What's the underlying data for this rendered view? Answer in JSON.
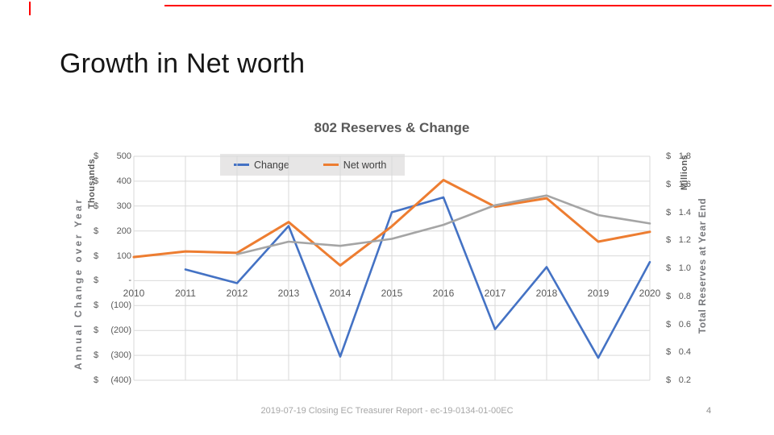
{
  "slide": {
    "title": "Growth in Net worth",
    "footer": "2019-07-19 Closing EC Treasurer Report - ec-19-0134-01-00EC",
    "page_number": "4",
    "accent_color": "#ff0000"
  },
  "chart_data": {
    "type": "line",
    "title": "802 Reserves & Change",
    "x": [
      2010,
      2011,
      2012,
      2013,
      2014,
      2015,
      2016,
      2017,
      2018,
      2019,
      2020
    ],
    "series": [
      {
        "name": "Change",
        "color": "#4472C4",
        "axis": "left",
        "in_legend": true,
        "stroke_width": 2.6,
        "values": [
          null,
          45,
          -10,
          220,
          -305,
          275,
          335,
          -195,
          55,
          -310,
          75
        ]
      },
      {
        "name": "Net worth",
        "color": "#ED7D31",
        "axis": "right",
        "in_legend": true,
        "stroke_width": 3,
        "values": [
          1.08,
          1.12,
          1.11,
          1.33,
          1.02,
          1.3,
          1.63,
          1.44,
          1.5,
          1.19,
          1.26
        ]
      },
      {
        "name": "",
        "color": "#A5A5A5",
        "axis": "right",
        "in_legend": false,
        "stroke_width": 2.6,
        "values": [
          null,
          null,
          1.1,
          1.19,
          1.16,
          1.21,
          1.31,
          1.45,
          1.52,
          1.38,
          1.32
        ]
      }
    ],
    "left_axis": {
      "title": "Annual Change over Year",
      "units_label": "Thousands",
      "min": -400,
      "max": 500,
      "ticks": [
        "$ 500",
        "$ 400",
        "$ 300",
        "$ 200",
        "$ 100",
        "$ -",
        "$ (100)",
        "$ (200)",
        "$ (300)",
        "$ (400)"
      ]
    },
    "right_axis": {
      "title": "Total Reserves at Year End",
      "units_label": "Millions",
      "min": 0.2,
      "max": 1.8,
      "ticks": [
        "$ 1.8",
        "$ 1.6",
        "$ 1.4",
        "$ 1.2",
        "$ 1.0",
        "$ 0.8",
        "$ 0.6",
        "$ 0.4",
        "$ 0.2"
      ]
    },
    "legend": [
      "Change",
      "Net worth"
    ],
    "grid": true,
    "gridline_color": "#d9d9d9",
    "legend_background": "#e7e6e6"
  }
}
